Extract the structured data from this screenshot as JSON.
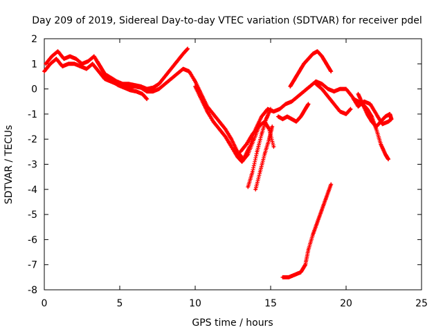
{
  "chart_data": {
    "type": "scatter",
    "title": "Day 209 of 2019, Sidereal Day-to-day VTEC variation (SDTVAR) for receiver pdel",
    "xlabel": "GPS time / hours",
    "ylabel": "SDTVAR / TECUs",
    "xlim": [
      0,
      25
    ],
    "ylim": [
      -8,
      2
    ],
    "xticks": [
      0,
      5,
      10,
      15,
      20,
      25
    ],
    "yticks": [
      -8,
      -7,
      -6,
      -5,
      -4,
      -3,
      -2,
      -1,
      0,
      1,
      2
    ],
    "grid": false,
    "legend": "none",
    "marker": "+",
    "color": "#ff0000",
    "series": [
      {
        "name": "track-1",
        "points": [
          [
            0.0,
            0.7
          ],
          [
            0.4,
            1.0
          ],
          [
            0.8,
            1.2
          ],
          [
            1.2,
            0.9
          ],
          [
            1.6,
            1.0
          ],
          [
            2.0,
            1.0
          ],
          [
            2.4,
            0.9
          ],
          [
            2.8,
            0.8
          ],
          [
            3.2,
            1.0
          ],
          [
            3.6,
            0.7
          ],
          [
            4.0,
            0.4
          ],
          [
            4.4,
            0.3
          ],
          [
            4.8,
            0.2
          ],
          [
            5.2,
            0.1
          ],
          [
            5.6,
            0.1
          ],
          [
            6.0,
            0.1
          ],
          [
            6.4,
            0.05
          ],
          [
            6.8,
            -0.1
          ],
          [
            7.2,
            -0.1
          ],
          [
            7.6,
            0.0
          ],
          [
            8.0,
            0.2
          ],
          [
            8.4,
            0.4
          ],
          [
            8.8,
            0.6
          ],
          [
            9.2,
            0.8
          ],
          [
            9.6,
            0.7
          ],
          [
            10.0,
            0.3
          ],
          [
            10.4,
            -0.2
          ],
          [
            10.8,
            -0.7
          ],
          [
            11.2,
            -1.0
          ],
          [
            11.6,
            -1.3
          ],
          [
            12.0,
            -1.6
          ],
          [
            12.4,
            -2.0
          ],
          [
            12.8,
            -2.5
          ],
          [
            13.2,
            -2.8
          ],
          [
            13.6,
            -2.3
          ],
          [
            14.0,
            -1.6
          ],
          [
            14.4,
            -1.1
          ],
          [
            14.8,
            -0.8
          ],
          [
            15.2,
            -0.9
          ],
          [
            15.6,
            -0.8
          ],
          [
            16.0,
            -0.6
          ],
          [
            16.4,
            -0.5
          ],
          [
            16.8,
            -0.3
          ],
          [
            17.2,
            -0.1
          ],
          [
            17.6,
            0.1
          ],
          [
            18.0,
            0.3
          ],
          [
            18.4,
            0.2
          ],
          [
            18.8,
            0.0
          ],
          [
            19.2,
            -0.1
          ],
          [
            19.6,
            0.0
          ],
          [
            20.0,
            0.0
          ],
          [
            20.4,
            -0.3
          ],
          [
            20.8,
            -0.7
          ],
          [
            21.2,
            -0.5
          ],
          [
            21.6,
            -0.6
          ],
          [
            22.0,
            -1.0
          ],
          [
            22.4,
            -1.4
          ],
          [
            22.8,
            -1.3
          ],
          [
            23.0,
            -1.2
          ]
        ]
      },
      {
        "name": "track-2",
        "points": [
          [
            0.1,
            1.0
          ],
          [
            0.5,
            1.3
          ],
          [
            0.9,
            1.5
          ],
          [
            1.3,
            1.2
          ],
          [
            1.7,
            1.3
          ],
          [
            2.1,
            1.2
          ],
          [
            2.5,
            1.0
          ],
          [
            2.9,
            1.1
          ],
          [
            3.3,
            1.3
          ],
          [
            3.7,
            0.9
          ],
          [
            4.0,
            0.6
          ],
          [
            4.4,
            0.45
          ],
          [
            4.8,
            0.3
          ],
          [
            5.2,
            0.2
          ],
          [
            5.6,
            0.2
          ],
          [
            6.0,
            0.15
          ],
          [
            6.4,
            0.1
          ],
          [
            6.8,
            0.0
          ],
          [
            7.2,
            0.05
          ],
          [
            7.6,
            0.2
          ],
          [
            8.0,
            0.5
          ],
          [
            8.4,
            0.8
          ],
          [
            8.8,
            1.1
          ],
          [
            9.2,
            1.4
          ],
          [
            9.5,
            1.6
          ]
        ]
      },
      {
        "name": "track-3",
        "points": [
          [
            3.5,
            1.1
          ],
          [
            3.8,
            0.8
          ],
          [
            4.1,
            0.5
          ],
          [
            4.5,
            0.3
          ],
          [
            4.9,
            0.15
          ],
          [
            5.3,
            0.05
          ],
          [
            5.7,
            -0.05
          ],
          [
            6.1,
            -0.1
          ],
          [
            6.5,
            -0.2
          ],
          [
            6.8,
            -0.4
          ]
        ]
      },
      {
        "name": "track-4",
        "points": [
          [
            10.0,
            0.1
          ],
          [
            10.4,
            -0.4
          ],
          [
            10.8,
            -0.9
          ],
          [
            11.2,
            -1.3
          ],
          [
            11.6,
            -1.6
          ],
          [
            12.0,
            -1.9
          ],
          [
            12.4,
            -2.3
          ],
          [
            12.8,
            -2.7
          ],
          [
            13.1,
            -2.9
          ],
          [
            13.5,
            -2.6
          ],
          [
            13.9,
            -2.0
          ],
          [
            14.3,
            -1.4
          ]
        ]
      },
      {
        "name": "track-5",
        "points": [
          [
            13.0,
            -2.5
          ],
          [
            13.4,
            -2.2
          ],
          [
            13.8,
            -1.8
          ],
          [
            14.2,
            -1.5
          ],
          [
            14.6,
            -1.3
          ],
          [
            14.9,
            -1.6
          ],
          [
            15.2,
            -2.3
          ]
        ]
      },
      {
        "name": "track-6",
        "points": [
          [
            13.5,
            -3.9
          ],
          [
            13.8,
            -3.3
          ],
          [
            14.1,
            -2.5
          ],
          [
            14.4,
            -1.8
          ],
          [
            14.7,
            -1.2
          ],
          [
            15.0,
            -0.8
          ]
        ]
      },
      {
        "name": "track-7",
        "points": [
          [
            14.0,
            -4.0
          ],
          [
            14.3,
            -3.3
          ],
          [
            14.6,
            -2.6
          ],
          [
            14.9,
            -2.0
          ],
          [
            15.1,
            -1.5
          ]
        ]
      },
      {
        "name": "track-8",
        "points": [
          [
            15.5,
            -1.1
          ],
          [
            15.8,
            -1.2
          ],
          [
            16.1,
            -1.1
          ],
          [
            16.4,
            -1.2
          ],
          [
            16.7,
            -1.3
          ],
          [
            17.0,
            -1.1
          ],
          [
            17.3,
            -0.8
          ],
          [
            17.5,
            -0.6
          ]
        ]
      },
      {
        "name": "track-9",
        "points": [
          [
            16.3,
            0.1
          ],
          [
            16.6,
            0.4
          ],
          [
            16.9,
            0.7
          ],
          [
            17.2,
            1.0
          ],
          [
            17.5,
            1.2
          ],
          [
            17.8,
            1.4
          ],
          [
            18.1,
            1.5
          ],
          [
            18.4,
            1.3
          ],
          [
            18.7,
            1.0
          ],
          [
            19.0,
            0.7
          ]
        ]
      },
      {
        "name": "track-10",
        "points": [
          [
            18.0,
            0.2
          ],
          [
            18.4,
            0.0
          ],
          [
            18.8,
            -0.3
          ],
          [
            19.2,
            -0.6
          ],
          [
            19.6,
            -0.9
          ],
          [
            20.0,
            -1.0
          ],
          [
            20.3,
            -0.8
          ]
        ]
      },
      {
        "name": "track-11",
        "points": [
          [
            20.5,
            -0.4
          ],
          [
            20.8,
            -0.5
          ],
          [
            21.1,
            -0.6
          ],
          [
            21.4,
            -0.8
          ],
          [
            21.7,
            -1.1
          ],
          [
            22.0,
            -1.6
          ],
          [
            22.3,
            -2.2
          ],
          [
            22.6,
            -2.6
          ],
          [
            22.8,
            -2.8
          ]
        ]
      },
      {
        "name": "track-12",
        "points": [
          [
            20.8,
            -0.2
          ],
          [
            21.1,
            -0.6
          ],
          [
            21.4,
            -1.0
          ],
          [
            21.7,
            -1.3
          ],
          [
            22.0,
            -1.5
          ],
          [
            22.3,
            -1.3
          ],
          [
            22.6,
            -1.1
          ],
          [
            22.9,
            -1.0
          ],
          [
            23.0,
            -1.2
          ]
        ]
      },
      {
        "name": "track-13",
        "points": [
          [
            15.8,
            -7.5
          ],
          [
            16.2,
            -7.5
          ],
          [
            16.6,
            -7.4
          ],
          [
            17.0,
            -7.3
          ],
          [
            17.3,
            -7.0
          ],
          [
            17.5,
            -6.4
          ],
          [
            17.8,
            -5.8
          ],
          [
            18.1,
            -5.3
          ],
          [
            18.4,
            -4.8
          ],
          [
            18.7,
            -4.3
          ],
          [
            19.0,
            -3.8
          ]
        ]
      }
    ]
  }
}
